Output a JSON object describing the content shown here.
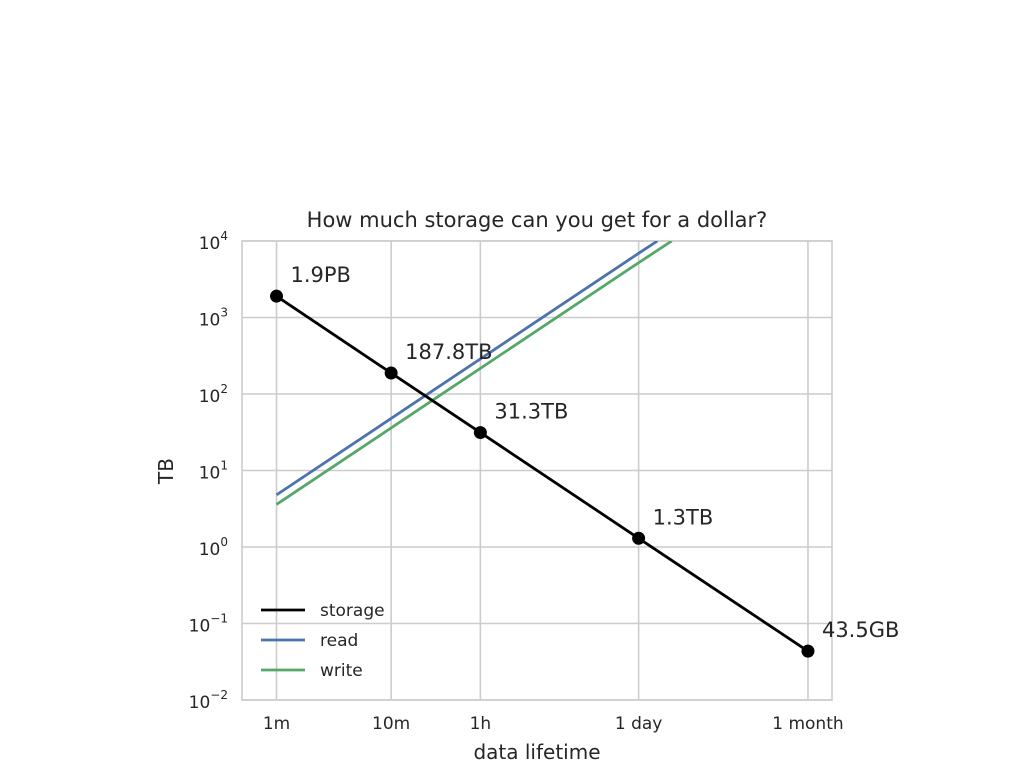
{
  "chart_data": {
    "type": "line",
    "title": "How much storage can you get for a dollar?",
    "xlabel": "data lifetime",
    "ylabel": "TB",
    "x_scale": "log",
    "y_scale": "log",
    "grid": true,
    "legend_placement": "lower-left",
    "x_ticks": [
      {
        "label": "1m",
        "minutes": 1
      },
      {
        "label": "10m",
        "minutes": 10
      },
      {
        "label": "1h",
        "minutes": 60
      },
      {
        "label": "1 day",
        "minutes": 1440
      },
      {
        "label": "1 month",
        "minutes": 43200
      }
    ],
    "x_range_minutes": [
      0.5,
      70000
    ],
    "y_ticks": [
      {
        "base": "10",
        "exp": "−2",
        "value": 0.01
      },
      {
        "base": "10",
        "exp": "−1",
        "value": 0.1
      },
      {
        "base": "10",
        "exp": "0",
        "value": 1
      },
      {
        "base": "10",
        "exp": "1",
        "value": 10
      },
      {
        "base": "10",
        "exp": "2",
        "value": 100
      },
      {
        "base": "10",
        "exp": "3",
        "value": 1000
      },
      {
        "base": "10",
        "exp": "4",
        "value": 10000
      }
    ],
    "y_range": [
      0.01,
      10000
    ],
    "series": [
      {
        "name": "storage",
        "color": "#000000",
        "markers": true,
        "points": [
          {
            "minutes": 1,
            "tb": 1900,
            "label": "1.9PB"
          },
          {
            "minutes": 10,
            "tb": 187.8,
            "label": "187.8TB"
          },
          {
            "minutes": 60,
            "tb": 31.3,
            "label": "31.3TB"
          },
          {
            "minutes": 1440,
            "tb": 1.3,
            "label": "1.3TB"
          },
          {
            "minutes": 43200,
            "tb": 0.0435,
            "label": "43.5GB"
          }
        ]
      },
      {
        "name": "read",
        "color": "#4c72b0",
        "markers": false,
        "points": [
          {
            "minutes": 1,
            "tb": 4.8
          },
          {
            "minutes": 1440,
            "tb": 6900
          },
          {
            "minutes": 2100,
            "tb": 10000
          }
        ]
      },
      {
        "name": "write",
        "color": "#55a868",
        "markers": false,
        "points": [
          {
            "minutes": 1,
            "tb": 3.6
          },
          {
            "minutes": 1440,
            "tb": 5200
          },
          {
            "minutes": 2800,
            "tb": 10000
          }
        ]
      }
    ]
  }
}
